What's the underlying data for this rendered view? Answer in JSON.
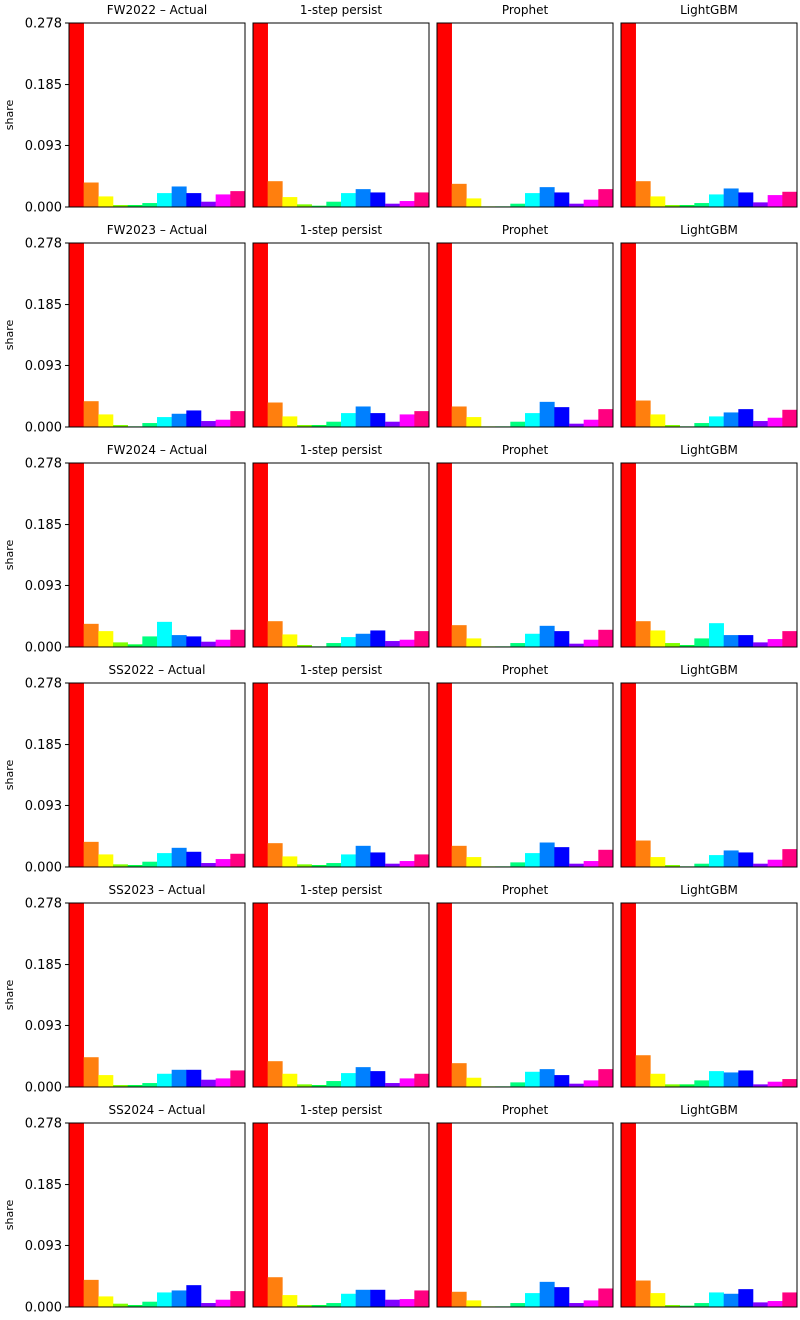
{
  "figure": {
    "ylabel": "share",
    "ylim": [
      0,
      0.278
    ],
    "yticks": [
      "0.000",
      "0.093",
      "0.185",
      "0.278"
    ],
    "column_titles": [
      "Actual",
      "1-step persist",
      "Prophet",
      "LightGBM"
    ],
    "bar_colors": [
      "#ff0000",
      "#ff7f0e",
      "#ffff00",
      "#80ff00",
      "#00ff40",
      "#00ff80",
      "#00ffff",
      "#0080ff",
      "#0000ff",
      "#8000ff",
      "#ff00ff",
      "#ff0080"
    ]
  },
  "chart_data": [
    {
      "type": "bar",
      "title": "FW2022 – Actual",
      "ylabel": "share",
      "ylim": [
        0,
        0.278
      ],
      "values": [
        0.278,
        0.037,
        0.016,
        0.003,
        0.003,
        0.006,
        0.021,
        0.031,
        0.021,
        0.008,
        0.019,
        0.024
      ]
    },
    {
      "type": "bar",
      "title": "1-step persist",
      "ylim": [
        0,
        0.278
      ],
      "values": [
        0.278,
        0.039,
        0.015,
        0.004,
        0.002,
        0.008,
        0.021,
        0.027,
        0.022,
        0.005,
        0.009,
        0.022
      ]
    },
    {
      "type": "bar",
      "title": "Prophet",
      "ylim": [
        0,
        0.278
      ],
      "values": [
        0.278,
        0.035,
        0.013,
        0.001,
        0.001,
        0.005,
        0.021,
        0.03,
        0.022,
        0.005,
        0.011,
        0.027
      ]
    },
    {
      "type": "bar",
      "title": "LightGBM",
      "ylim": [
        0,
        0.278
      ],
      "values": [
        0.278,
        0.039,
        0.016,
        0.003,
        0.003,
        0.006,
        0.019,
        0.028,
        0.022,
        0.007,
        0.018,
        0.023
      ]
    },
    {
      "type": "bar",
      "title": "FW2023 – Actual",
      "ylabel": "share",
      "ylim": [
        0,
        0.278
      ],
      "values": [
        0.278,
        0.039,
        0.019,
        0.003,
        0.001,
        0.006,
        0.015,
        0.02,
        0.025,
        0.009,
        0.011,
        0.024
      ]
    },
    {
      "type": "bar",
      "title": "1-step persist",
      "ylim": [
        0,
        0.278
      ],
      "values": [
        0.278,
        0.037,
        0.016,
        0.003,
        0.003,
        0.008,
        0.021,
        0.031,
        0.021,
        0.008,
        0.019,
        0.024
      ]
    },
    {
      "type": "bar",
      "title": "Prophet",
      "ylim": [
        0,
        0.278
      ],
      "values": [
        0.278,
        0.031,
        0.015,
        0.001,
        0.001,
        0.008,
        0.021,
        0.038,
        0.03,
        0.005,
        0.011,
        0.027
      ]
    },
    {
      "type": "bar",
      "title": "LightGBM",
      "ylim": [
        0,
        0.278
      ],
      "values": [
        0.278,
        0.04,
        0.019,
        0.003,
        0.001,
        0.006,
        0.016,
        0.022,
        0.027,
        0.009,
        0.014,
        0.026
      ]
    },
    {
      "type": "bar",
      "title": "FW2024 – Actual",
      "ylabel": "share",
      "ylim": [
        0,
        0.278
      ],
      "values": [
        0.278,
        0.035,
        0.024,
        0.007,
        0.004,
        0.016,
        0.038,
        0.018,
        0.016,
        0.008,
        0.011,
        0.026
      ]
    },
    {
      "type": "bar",
      "title": "1-step persist",
      "ylim": [
        0,
        0.278
      ],
      "values": [
        0.278,
        0.039,
        0.019,
        0.003,
        0.001,
        0.006,
        0.015,
        0.02,
        0.025,
        0.009,
        0.011,
        0.024
      ]
    },
    {
      "type": "bar",
      "title": "Prophet",
      "ylim": [
        0,
        0.278
      ],
      "values": [
        0.278,
        0.033,
        0.013,
        0.001,
        0.001,
        0.006,
        0.02,
        0.032,
        0.024,
        0.005,
        0.011,
        0.026
      ]
    },
    {
      "type": "bar",
      "title": "LightGBM",
      "ylim": [
        0,
        0.278
      ],
      "values": [
        0.278,
        0.039,
        0.025,
        0.006,
        0.003,
        0.013,
        0.036,
        0.018,
        0.018,
        0.007,
        0.012,
        0.024
      ]
    },
    {
      "type": "bar",
      "title": "SS2022 – Actual",
      "ylabel": "share",
      "ylim": [
        0,
        0.278
      ],
      "values": [
        0.278,
        0.038,
        0.019,
        0.004,
        0.003,
        0.008,
        0.021,
        0.029,
        0.023,
        0.006,
        0.012,
        0.02
      ]
    },
    {
      "type": "bar",
      "title": "1-step persist",
      "ylim": [
        0,
        0.278
      ],
      "values": [
        0.278,
        0.036,
        0.016,
        0.004,
        0.003,
        0.006,
        0.019,
        0.032,
        0.022,
        0.005,
        0.009,
        0.019
      ]
    },
    {
      "type": "bar",
      "title": "Prophet",
      "ylim": [
        0,
        0.278
      ],
      "values": [
        0.278,
        0.032,
        0.015,
        0.001,
        0.001,
        0.007,
        0.021,
        0.037,
        0.03,
        0.005,
        0.009,
        0.026
      ]
    },
    {
      "type": "bar",
      "title": "LightGBM",
      "ylim": [
        0,
        0.278
      ],
      "values": [
        0.278,
        0.04,
        0.015,
        0.003,
        0.001,
        0.005,
        0.018,
        0.025,
        0.022,
        0.005,
        0.011,
        0.027
      ]
    },
    {
      "type": "bar",
      "title": "SS2023 – Actual",
      "ylabel": "share",
      "ylim": [
        0,
        0.278
      ],
      "values": [
        0.278,
        0.045,
        0.018,
        0.003,
        0.003,
        0.006,
        0.02,
        0.026,
        0.026,
        0.011,
        0.013,
        0.025
      ]
    },
    {
      "type": "bar",
      "title": "1-step persist",
      "ylim": [
        0,
        0.278
      ],
      "values": [
        0.278,
        0.039,
        0.02,
        0.004,
        0.003,
        0.009,
        0.021,
        0.03,
        0.024,
        0.006,
        0.013,
        0.02
      ]
    },
    {
      "type": "bar",
      "title": "Prophet",
      "ylim": [
        0,
        0.278
      ],
      "values": [
        0.278,
        0.036,
        0.014,
        0.001,
        0.001,
        0.007,
        0.023,
        0.027,
        0.018,
        0.005,
        0.01,
        0.027
      ]
    },
    {
      "type": "bar",
      "title": "LightGBM",
      "ylim": [
        0,
        0.278
      ],
      "values": [
        0.278,
        0.048,
        0.02,
        0.004,
        0.004,
        0.01,
        0.024,
        0.022,
        0.025,
        0.004,
        0.008,
        0.012
      ]
    },
    {
      "type": "bar",
      "title": "SS2024 – Actual",
      "ylabel": "share",
      "ylim": [
        0,
        0.278
      ],
      "values": [
        0.278,
        0.041,
        0.016,
        0.005,
        0.003,
        0.008,
        0.022,
        0.025,
        0.033,
        0.006,
        0.011,
        0.024
      ]
    },
    {
      "type": "bar",
      "title": "1-step persist",
      "ylim": [
        0,
        0.278
      ],
      "values": [
        0.278,
        0.045,
        0.018,
        0.003,
        0.003,
        0.006,
        0.02,
        0.026,
        0.026,
        0.011,
        0.012,
        0.025
      ]
    },
    {
      "type": "bar",
      "title": "Prophet",
      "ylim": [
        0,
        0.278
      ],
      "values": [
        0.278,
        0.023,
        0.01,
        0.001,
        0.001,
        0.006,
        0.021,
        0.038,
        0.03,
        0.006,
        0.01,
        0.028
      ]
    },
    {
      "type": "bar",
      "title": "LightGBM",
      "ylim": [
        0,
        0.278
      ],
      "values": [
        0.278,
        0.04,
        0.021,
        0.003,
        0.002,
        0.006,
        0.022,
        0.02,
        0.027,
        0.007,
        0.009,
        0.022
      ]
    }
  ]
}
